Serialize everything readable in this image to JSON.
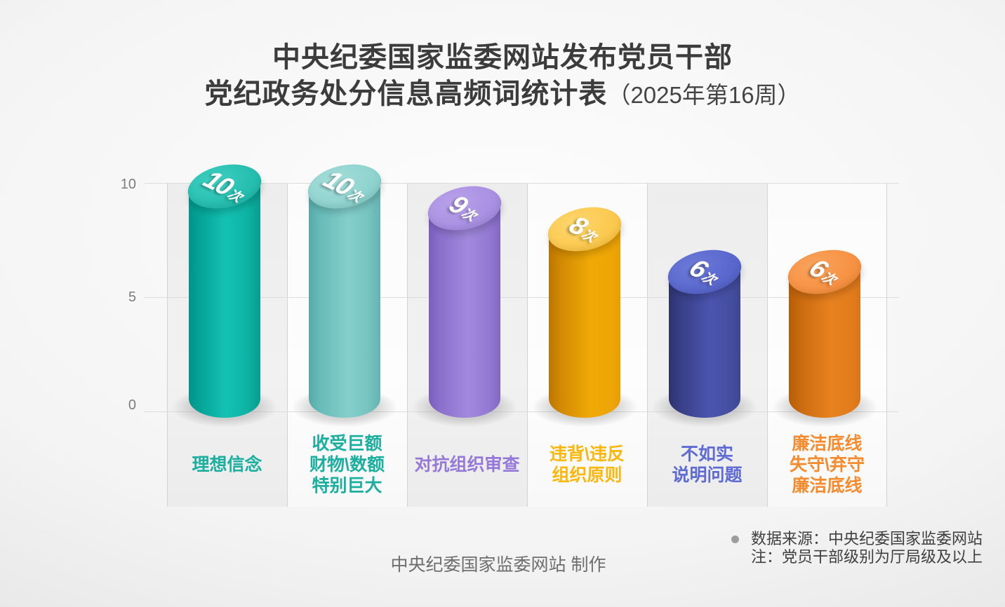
{
  "title": {
    "line1": "中央纪委国家监委网站发布党员干部",
    "line2": "党纪政务处分信息高频词统计表",
    "period": "（2025年第16周）"
  },
  "y_axis": {
    "tick_10": "10",
    "tick_5": "5",
    "tick_0": "0"
  },
  "chart_data": {
    "type": "bar",
    "title": "中央纪委国家监委网站发布党员干部党纪政务处分信息高频词统计表（2025年第16周）",
    "categories": [
      "理想信念",
      "收受巨额财物\\数额特别巨大",
      "对抗组织审查",
      "违背\\违反组织原则",
      "不如实说明问题",
      "廉洁底线失守\\弃守廉洁底线"
    ],
    "values": [
      10,
      10,
      9,
      8,
      6,
      6
    ],
    "unit": "次",
    "xlabel": "",
    "ylabel": "",
    "ylim": [
      0,
      10
    ],
    "yticks": [
      0,
      5,
      10
    ],
    "grid": "horizontal",
    "legend": "none",
    "colors": [
      "#13c2b3",
      "#84cfcc",
      "#a289dd",
      "#f0a906",
      "#4a55af",
      "#e8811f"
    ]
  },
  "bars": [
    {
      "value": "10",
      "unit": "次",
      "label": "理想信念"
    },
    {
      "value": "10",
      "unit": "次",
      "label": "收受巨额\n财物\\数额\n特别巨大"
    },
    {
      "value": "9",
      "unit": "次",
      "label": "对抗组织审查"
    },
    {
      "value": "8",
      "unit": "次",
      "label": "违背\\违反\n组织原则"
    },
    {
      "value": "6",
      "unit": "次",
      "label": "不如实\n说明问题"
    },
    {
      "value": "6",
      "unit": "次",
      "label": "廉洁底线\n失守\\弃守\n廉洁底线"
    }
  ],
  "footer": {
    "credit": "中央纪委国家监委网站 制作",
    "source": "数据来源：中央纪委国家监委网站",
    "note": "注：党员干部级别为厅局级及以上"
  }
}
